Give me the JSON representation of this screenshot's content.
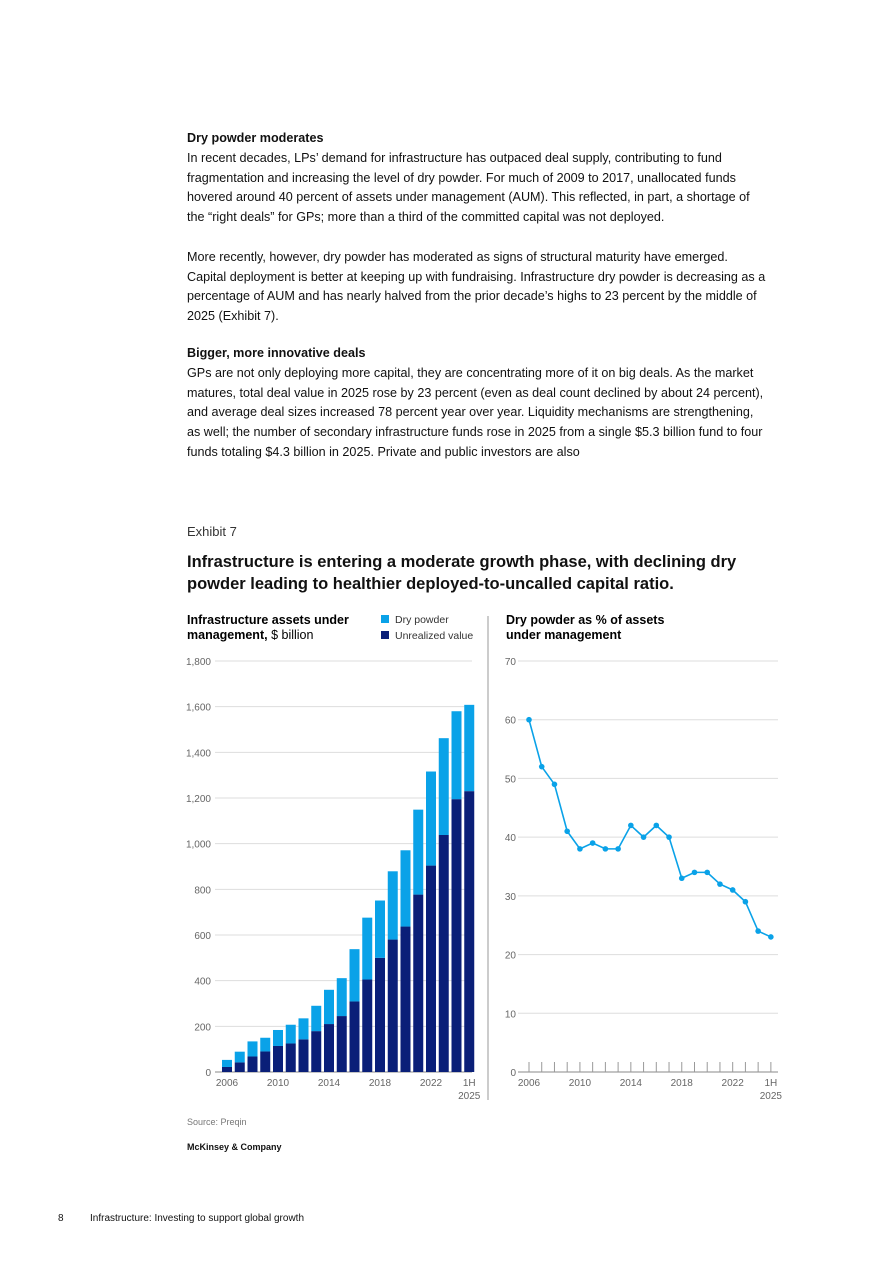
{
  "sections": [
    {
      "heading": "Dry powder moderates",
      "paragraphs": [
        "In recent decades, LPs’ demand for infrastructure has outpaced deal supply, contributing to fund fragmentation and increasing the level of dry powder. For much of 2009 to 2017, unallocated funds hovered around 40 percent of assets under management (AUM). This reflected, in part, a shortage of the “right deals” for GPs; more than a third of the committed capital was not deployed.",
        "More recently, however, dry powder has moderated as signs of structural maturity have emerged. Capital deployment is better at keeping up with fundraising. Infrastructure dry powder is decreasing as a percentage of AUM and has nearly halved from the prior decade’s highs to 23 percent by the middle of 2025 (Exhibit 7)."
      ]
    },
    {
      "heading": "Bigger, more innovative deals",
      "paragraphs": [
        "GPs are not only deploying more capital, they are concentrating more of it on big deals. As the market matures, total deal value in 2025 rose by 23 percent (even as deal count declined by about 24 percent), and average deal sizes increased 78 percent year over year. Liquidity mechanisms are strengthening, as well; the number of secondary infrastructure funds rose in 2025 from a single $5.3 billion fund to four funds totaling $4.3 billion in 2025. Private and public investors are also"
      ]
    }
  ],
  "exhibit": {
    "label": "Exhibit 7",
    "title": "Infrastructure is entering a moderate growth phase, with declining dry powder leading to healthier deployed-to-uncalled capital ratio."
  },
  "chart_data": [
    {
      "type": "bar",
      "stacked": true,
      "title_bold": "Infrastructure assets under management,",
      "title_unit": " $ billion",
      "categories": [
        "2006",
        "2007",
        "2008",
        "2009",
        "2010",
        "2011",
        "2012",
        "2013",
        "2014",
        "2015",
        "2016",
        "2017",
        "2018",
        "2019",
        "2020",
        "2021",
        "2022",
        "2023",
        "2024",
        "1H 2025"
      ],
      "tick_labels": [
        "2006",
        "2010",
        "2014",
        "2018",
        "2022",
        "1H",
        "2025"
      ],
      "series": [
        {
          "name": "Unrealized value",
          "color": "#0a1f78",
          "values": [
            22,
            42,
            68,
            90,
            114,
            125,
            143,
            179,
            210,
            245,
            309,
            405,
            500,
            580,
            637,
            777,
            904,
            1038,
            1195,
            1230
          ]
        },
        {
          "name": "Dry powder",
          "color": "#0aa2e8",
          "values": [
            31,
            47,
            66,
            60,
            70,
            82,
            92,
            111,
            150,
            166,
            229,
            271,
            251,
            299,
            334,
            372,
            412,
            424,
            385,
            378
          ]
        }
      ],
      "ylim": [
        0,
        1800
      ],
      "yticks": [
        "0",
        "200",
        "400",
        "600",
        "800",
        "1,000",
        "1,200",
        "1,400",
        "1,600",
        "1,800"
      ],
      "legend": "top-right",
      "grid": true
    },
    {
      "type": "line",
      "title": "Dry powder as % of assets under management",
      "categories": [
        "2006",
        "2007",
        "2008",
        "2009",
        "2010",
        "2011",
        "2012",
        "2013",
        "2014",
        "2015",
        "2016",
        "2017",
        "2018",
        "2019",
        "2020",
        "2021",
        "2022",
        "2023",
        "2024",
        "1H 2025"
      ],
      "tick_labels": [
        "2006",
        "2010",
        "2014",
        "2018",
        "2022",
        "1H",
        "2025"
      ],
      "series": [
        {
          "name": "Dry powder %",
          "color": "#0aa2e8",
          "values": [
            60,
            52,
            49,
            41,
            38,
            39,
            38,
            38,
            42,
            40,
            42,
            40,
            33,
            34,
            34,
            32,
            31,
            29,
            24,
            23
          ]
        }
      ],
      "ylim": [
        0,
        70
      ],
      "yticks": [
        "0",
        "10",
        "20",
        "30",
        "40",
        "50",
        "60",
        "70"
      ],
      "grid": true
    }
  ],
  "source": "Source: Preqin",
  "brand": "McKinsey & Company",
  "footer": {
    "page": "8",
    "title": "Infrastructure: Investing to support global growth"
  }
}
